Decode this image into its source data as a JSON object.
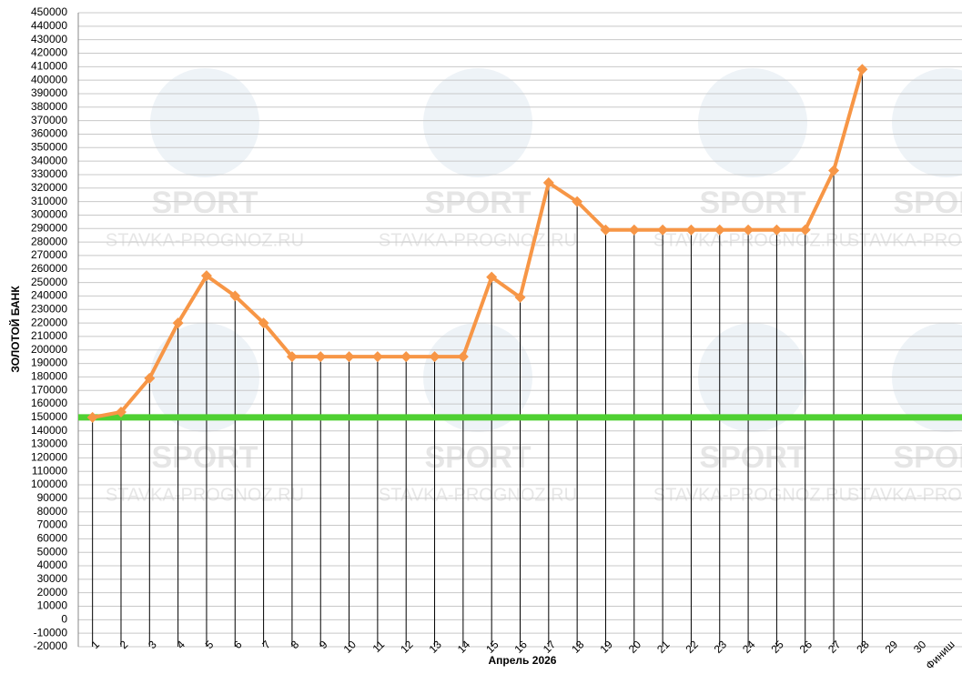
{
  "chart_data": {
    "type": "line",
    "xlabel": "Апрель 2026",
    "ylabel": "ЗОЛОТОЙ БАНК",
    "watermark": [
      "SPORT",
      "STAVKA-PROGNOZ.RU"
    ],
    "categories": [
      "1",
      "2",
      "3",
      "4",
      "5",
      "6",
      "7",
      "8",
      "9",
      "10",
      "11",
      "12",
      "13",
      "14",
      "15",
      "16",
      "17",
      "18",
      "19",
      "20",
      "21",
      "22",
      "23",
      "24",
      "25",
      "26",
      "27",
      "28",
      "29",
      "30",
      "Финиш"
    ],
    "series": [
      {
        "color": "#f79646",
        "values": [
          150000,
          154000,
          179000,
          220000,
          255000,
          240000,
          220000,
          195000,
          195000,
          195000,
          195000,
          195000,
          195000,
          195000,
          254000,
          239000,
          324000,
          310000,
          289000,
          289000,
          289000,
          289000,
          289000,
          289000,
          289000,
          289000,
          333000,
          408000,
          null,
          null,
          null
        ]
      }
    ],
    "reference_line": {
      "value": 150000,
      "color": "#4fd032"
    },
    "ylim": [
      -20000,
      450000
    ],
    "yticks": [
      -20000,
      -10000,
      0,
      10000,
      20000,
      30000,
      40000,
      50000,
      60000,
      70000,
      80000,
      90000,
      100000,
      110000,
      120000,
      130000,
      140000,
      150000,
      160000,
      170000,
      180000,
      190000,
      200000,
      210000,
      220000,
      230000,
      240000,
      250000,
      260000,
      270000,
      280000,
      290000,
      300000,
      310000,
      320000,
      330000,
      340000,
      350000,
      360000,
      370000,
      380000,
      390000,
      400000,
      410000,
      420000,
      430000,
      440000,
      450000
    ],
    "grid": true
  }
}
